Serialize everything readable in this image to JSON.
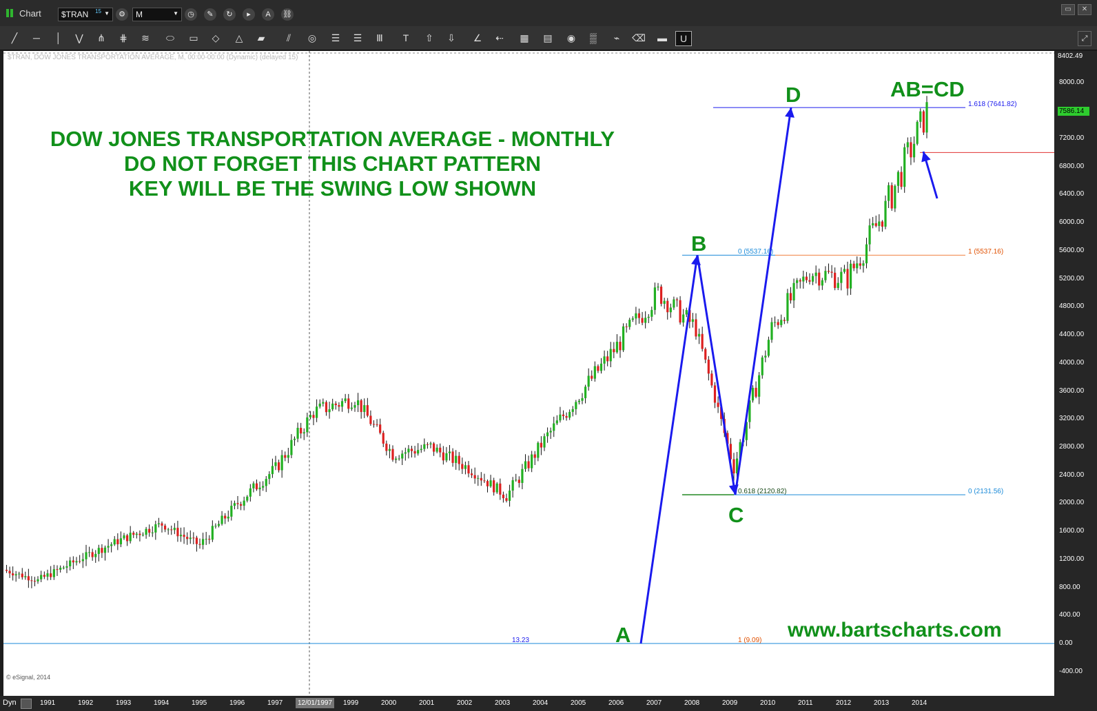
{
  "app": {
    "window_title": "Chart",
    "symbol": "$TRAN",
    "symbol_badge": "15",
    "interval": "M"
  },
  "colors": {
    "up": "#22b022",
    "down": "#dd2020",
    "arrow": "#1a1aee",
    "title_green": "#11901a"
  },
  "chart_info": "$TRAN, DOW JONES TRANSPORTATION AVERAGE, M, 00:00-00:00 (Dynamic) (delayed 15)",
  "annotations": {
    "title_lines": [
      "DOW JONES TRANSPORTATION AVERAGE - MONTHLY",
      "DO NOT FORGET THIS CHART PATTERN",
      "KEY WILL BE THE SWING LOW SHOWN"
    ],
    "points": {
      "A": "A",
      "B": "B",
      "C": "C",
      "D": "D"
    },
    "abcd": "AB=CD",
    "website": "www.bartscharts.com",
    "copyright": "© eSignal, 2014",
    "fib_labels": {
      "d": "1.618 (7641.82)",
      "b_left": "0 (5537.16)",
      "b_right": "1 (5537.16)",
      "c_left": "0.618 (2120.82)",
      "c_right": "0 (2131.56)",
      "a_left": "13.23",
      "a_right": "1 (9.09)"
    }
  },
  "price_axis": {
    "top_label": "8402.49",
    "last_label": "7586.14",
    "ticks": [
      "8000.00",
      "7600.00",
      "7200.00",
      "6800.00",
      "6400.00",
      "6000.00",
      "5600.00",
      "5200.00",
      "4800.00",
      "4400.00",
      "4000.00",
      "3600.00",
      "3200.00",
      "2800.00",
      "2400.00",
      "2000.00",
      "1600.00",
      "1200.00",
      "800.00",
      "400.00",
      "0.00",
      "-400.00"
    ]
  },
  "time_axis": {
    "mode": "Dyn",
    "crosshair": "12/01/1997",
    "years": [
      "1991",
      "1992",
      "1993",
      "1994",
      "1995",
      "1996",
      "1997",
      "1999",
      "2000",
      "2001",
      "2002",
      "2003",
      "2004",
      "2005",
      "2006",
      "2007",
      "2008",
      "2009",
      "2010",
      "2011",
      "2012",
      "2013",
      "2014"
    ]
  },
  "chart_data": {
    "type": "candlestick",
    "ylim": [
      -500,
      8402.49
    ],
    "x": [
      "1990",
      "1991",
      "1992",
      "1993",
      "1994",
      "1995",
      "1996",
      "1997",
      "1998",
      "1999",
      "2000",
      "2001",
      "2002",
      "2003",
      "2004",
      "2005",
      "2006",
      "2007",
      "2008",
      "2009",
      "2010",
      "2011",
      "2012",
      "2013",
      "2014"
    ],
    "close": [
      1050,
      900,
      1250,
      1500,
      1700,
      1400,
      2000,
      2500,
      3300,
      3500,
      2700,
      2800,
      2500,
      2100,
      2900,
      3600,
      4300,
      5000,
      4500,
      2500,
      4500,
      5300,
      5200,
      6200,
      7586.14
    ],
    "pattern_points": {
      "A": 0,
      "B": 5537.16,
      "C": 2120.82,
      "D": 7641.82
    },
    "levels": {
      "fib_1618": 7641.82,
      "fib_0618": 2120.82,
      "swing_low": 7000
    }
  }
}
